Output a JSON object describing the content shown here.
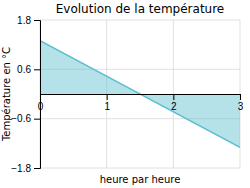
{
  "chart_data": {
    "type": "area",
    "title": "Evolution de la température",
    "xlabel": "heure par heure",
    "ylabel": "Température en °C",
    "x": [
      0,
      3
    ],
    "values": [
      1.3,
      -1.3
    ],
    "color": "#5bbece",
    "xlim": [
      0,
      3
    ],
    "ylim": [
      -1.8,
      1.8
    ],
    "xticks": [
      0,
      1,
      2,
      3
    ],
    "yticks": [
      -1.8,
      -0.6,
      0.6,
      1.8
    ],
    "grid": true
  }
}
